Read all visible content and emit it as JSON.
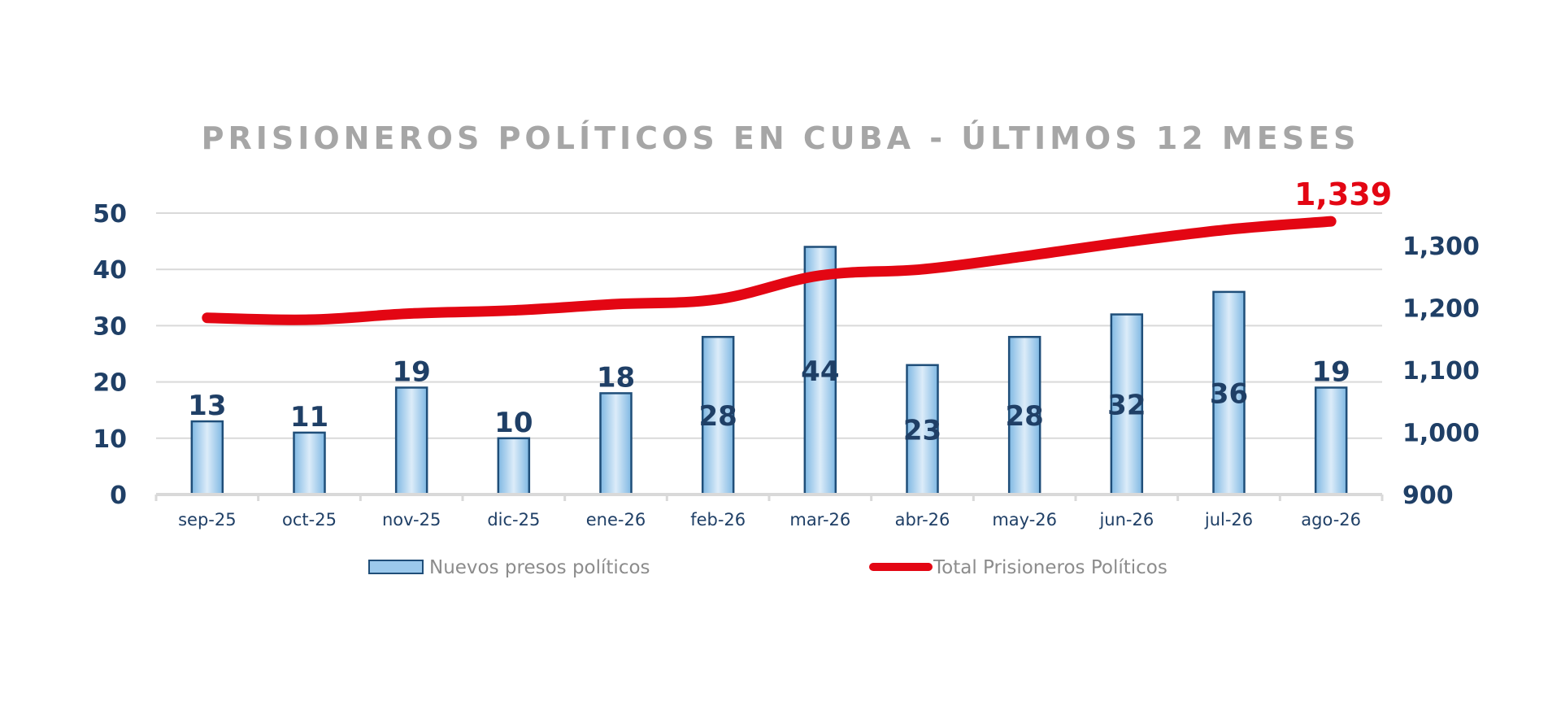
{
  "chart_data": {
    "type": "bar",
    "title": "PRISIONEROS POLÍTICOS EN CUBA - ÚLTIMOS 12 MESES",
    "categories": [
      "sep-25",
      "oct-25",
      "nov-25",
      "dic-25",
      "ene-26",
      "feb-26",
      "mar-26",
      "abr-26",
      "may-26",
      "jun-26",
      "jul-26",
      "ago-26"
    ],
    "series": [
      {
        "name": "Nuevos presos políticos",
        "type": "bar",
        "axis": "left",
        "values": [
          13,
          11,
          19,
          10,
          18,
          28,
          44,
          23,
          28,
          32,
          36,
          19
        ],
        "data_labels": [
          "13",
          "11",
          "19",
          "10",
          "18",
          "28",
          "44",
          "23",
          "28",
          "32",
          "36",
          "19"
        ],
        "color": "#9cc9ec"
      },
      {
        "name": "Total Prisioneros Políticos",
        "type": "line",
        "axis": "right",
        "values": [
          1184,
          1181,
          1191,
          1196,
          1206,
          1214,
          1252,
          1262,
          1283,
          1306,
          1326,
          1339
        ],
        "last_label": "1,339",
        "color": "#e30613"
      }
    ],
    "y_left": {
      "ylim": [
        0,
        50
      ],
      "ticks": [
        0,
        10,
        20,
        30,
        40,
        50
      ],
      "tick_labels": [
        "0",
        "10",
        "20",
        "30",
        "40",
        "50"
      ]
    },
    "y_right": {
      "ylim": [
        900,
        1350
      ],
      "ticks": [
        900,
        1000,
        1100,
        1200,
        1300
      ],
      "tick_labels": [
        "900",
        "1,000",
        "1,100",
        "1,200",
        "1,300"
      ]
    },
    "grid": true,
    "legend_position": "bottom"
  }
}
